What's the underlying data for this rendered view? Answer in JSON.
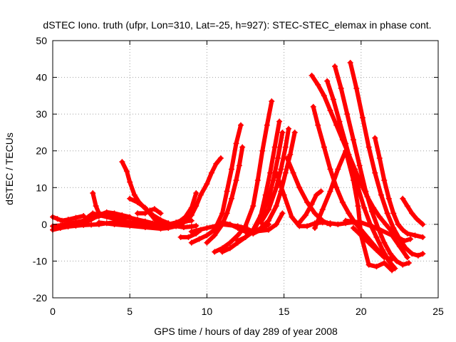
{
  "chart_data": {
    "type": "scatter",
    "title": "dSTEC Iono. truth (ufpr, Lon=310, Lat=-25, h=927): STEC-STEC_elemax in phase cont.",
    "xlabel": "GPS time / hours of day 289 of year 2008",
    "ylabel": "dSTEC  / TECUs",
    "xlim": [
      0,
      25
    ],
    "ylim": [
      -20,
      50
    ],
    "xticks": [
      0,
      5,
      10,
      15,
      20,
      25
    ],
    "yticks": [
      -20,
      -10,
      0,
      10,
      20,
      30,
      40,
      50
    ],
    "grid": true,
    "marker": "plus",
    "color": "#ff0000",
    "series": [
      {
        "x": [
          0.0,
          0.5,
          1.0,
          1.5,
          2.0,
          2.5,
          3.0,
          3.5,
          4.0,
          4.5,
          5.0,
          5.5,
          6.0,
          6.5,
          7.0
        ],
        "y": [
          -1.5,
          -1.0,
          -0.6,
          -0.4,
          -0.2,
          -0.1,
          0.0,
          0.3,
          0.5,
          0.7,
          0.6,
          0.3,
          0.0,
          -0.3,
          -0.6
        ]
      },
      {
        "x": [
          0.0,
          0.3,
          0.6,
          1.0,
          1.5,
          2.0
        ],
        "y": [
          2.0,
          1.5,
          1.0,
          1.3,
          1.8,
          2.3
        ]
      },
      {
        "x": [
          0.0,
          0.5,
          1.0,
          1.5,
          2.0,
          2.5,
          3.0,
          3.5
        ],
        "y": [
          -0.5,
          -0.3,
          0.2,
          0.6,
          1.0,
          1.6,
          2.2,
          2.8
        ]
      },
      {
        "x": [
          1.0,
          1.5,
          2.0,
          2.5,
          3.0,
          3.5,
          4.0,
          4.5,
          5.0
        ],
        "y": [
          -0.5,
          0.0,
          0.5,
          1.3,
          2.5,
          3.3,
          3.0,
          2.5,
          2.0
        ]
      },
      {
        "x": [
          2.0,
          2.3,
          2.6,
          3.0,
          3.5,
          4.0,
          4.5,
          5.0,
          5.5,
          6.0,
          6.5,
          7.0,
          7.5,
          8.0,
          8.5,
          9.0
        ],
        "y": [
          1.0,
          2.0,
          3.0,
          2.5,
          2.0,
          1.5,
          1.0,
          0.5,
          0.0,
          -0.3,
          -0.5,
          -0.7,
          -0.5,
          0.3,
          0.8,
          1.0
        ]
      },
      {
        "x": [
          2.6,
          2.8,
          3.0,
          3.5,
          4.0,
          4.5,
          5.0,
          5.5,
          6.0,
          6.5,
          7.0
        ],
        "y": [
          8.5,
          5.0,
          3.0,
          2.6,
          2.3,
          2.0,
          1.8,
          1.3,
          0.8,
          0.3,
          -0.3
        ]
      },
      {
        "x": [
          4.5,
          4.8,
          5.0,
          5.3,
          5.6,
          6.0,
          6.5,
          7.0,
          7.5,
          8.0,
          8.5,
          9.0,
          9.3
        ],
        "y": [
          17.0,
          14.5,
          11.5,
          8.0,
          6.0,
          4.3,
          2.5,
          1.2,
          0.3,
          -0.5,
          -0.8,
          -0.6,
          -0.4
        ]
      },
      {
        "x": [
          5.0,
          5.5,
          6.0,
          6.3,
          6.6,
          7.0,
          7.5
        ],
        "y": [
          7.0,
          6.0,
          4.5,
          3.0,
          1.5,
          0.5,
          0.0
        ]
      },
      {
        "x": [
          5.5,
          6.0,
          6.3,
          6.6,
          7.0
        ],
        "y": [
          3.0,
          3.0,
          3.8,
          4.2,
          3.0
        ]
      },
      {
        "x": [
          3.0,
          4.0,
          5.0,
          6.0,
          7.0,
          7.5,
          8.0,
          8.3
        ],
        "y": [
          0.5,
          0.0,
          -0.4,
          -0.8,
          -1.2,
          -1.0,
          -0.5,
          0.0
        ]
      },
      {
        "x": [
          8.3,
          8.8,
          9.3,
          9.6
        ],
        "y": [
          -3.5,
          -3.5,
          -2.5,
          -1.5
        ]
      },
      {
        "x": [
          7.5,
          8.0,
          8.3,
          8.6,
          9.0,
          9.3
        ],
        "y": [
          0.0,
          0.5,
          1.0,
          2.0,
          4.5,
          8.5
        ]
      },
      {
        "x": [
          8.3,
          8.7,
          9.0,
          9.3,
          9.6,
          10.0,
          10.3,
          10.6,
          10.9
        ],
        "y": [
          0.0,
          1.0,
          2.5,
          5.0,
          8.0,
          11.0,
          14.0,
          16.5,
          18.0
        ]
      },
      {
        "x": [
          9.0,
          9.5,
          10.0,
          10.5,
          11.0,
          11.3,
          11.6,
          11.9,
          12.2
        ],
        "y": [
          -5.0,
          -4.0,
          -3.0,
          -1.5,
          3.0,
          9.0,
          15.0,
          22.0,
          27.0
        ]
      },
      {
        "x": [
          10.0,
          10.5,
          11.0,
          11.3,
          11.6,
          11.9,
          12.1,
          12.3
        ],
        "y": [
          -5.0,
          -3.0,
          0.0,
          3.0,
          7.0,
          12.0,
          16.0,
          21.0
        ]
      },
      {
        "x": [
          10.5,
          11.0,
          11.5,
          12.0,
          12.5,
          13.0,
          13.3,
          13.6,
          13.9,
          14.2
        ],
        "y": [
          -7.5,
          -6.5,
          -5.0,
          -3.0,
          -0.5,
          5.0,
          12.0,
          20.0,
          27.0,
          33.5
        ]
      },
      {
        "x": [
          11.0,
          11.5,
          12.0,
          12.5,
          13.0,
          13.5,
          13.8,
          14.1,
          14.4,
          14.7
        ],
        "y": [
          -7.5,
          -6.5,
          -5.0,
          -3.5,
          -1.5,
          2.5,
          8.0,
          14.0,
          21.0,
          28.0
        ]
      },
      {
        "x": [
          12.0,
          12.5,
          13.0,
          13.5,
          14.0,
          14.3,
          14.6,
          14.9
        ],
        "y": [
          -4.5,
          -3.5,
          -2.0,
          2.0,
          7.0,
          12.0,
          18.0,
          25.0
        ]
      },
      {
        "x": [
          13.0,
          13.5,
          14.0,
          14.5,
          14.8,
          15.1,
          15.4,
          15.7
        ],
        "y": [
          -2.5,
          -1.0,
          1.0,
          5.0,
          9.0,
          14.0,
          19.0,
          25.0
        ]
      },
      {
        "x": [
          13.5,
          14.0,
          14.5,
          14.8,
          15.1,
          15.3
        ],
        "y": [
          0.5,
          4.0,
          10.0,
          15.0,
          21.0,
          26.0
        ]
      },
      {
        "x": [
          9.0,
          10.0,
          11.0,
          12.0,
          12.5,
          13.0,
          14.0,
          14.5,
          14.9
        ],
        "y": [
          -2.0,
          -1.0,
          0.0,
          -0.5,
          -1.0,
          -2.0,
          -1.5,
          0.0,
          3.0
        ]
      },
      {
        "x": [
          11.0,
          11.5,
          12.0,
          12.5,
          13.0,
          13.5,
          14.0
        ],
        "y": [
          0.5,
          0.0,
          -1.0,
          -2.0,
          -2.5,
          -1.5,
          0.0
        ]
      },
      {
        "x": [
          15.2,
          15.6,
          16.0,
          16.5,
          17.0,
          17.5,
          17.8,
          18.0
        ],
        "y": [
          18.0,
          14.0,
          10.0,
          6.0,
          3.0,
          1.0,
          0.3,
          0.0
        ]
      },
      {
        "x": [
          14.5,
          15.0,
          15.5,
          16.0,
          16.5,
          17.0,
          17.5,
          18.0,
          18.5,
          19.0,
          19.5,
          20.0
        ],
        "y": [
          14.0,
          8.0,
          2.0,
          -0.5,
          -0.5,
          0.3,
          0.5,
          0.3,
          0.0,
          0.3,
          0.6,
          0.5
        ]
      },
      {
        "x": [
          16.0,
          16.4,
          16.8,
          17.1,
          17.4
        ],
        "y": [
          0.5,
          2.5,
          5.5,
          8.0,
          9.0
        ]
      },
      {
        "x": [
          16.8,
          17.2,
          17.6,
          18.0,
          18.4,
          18.8,
          19.2,
          19.6,
          20.0,
          20.4,
          20.8,
          21.2,
          21.6,
          22.0,
          22.4,
          22.8,
          23.2
        ],
        "y": [
          40.5,
          38.0,
          35.0,
          31.0,
          27.0,
          23.0,
          19.0,
          15.0,
          11.0,
          7.5,
          4.5,
          2.0,
          0.0,
          -2.0,
          -3.5,
          -4.5,
          -4.0
        ]
      },
      {
        "x": [
          16.9,
          17.2,
          17.6,
          18.0,
          18.4,
          18.8,
          19.2,
          19.6,
          20.0,
          20.4,
          20.8,
          21.2,
          21.6,
          22.0
        ],
        "y": [
          32.0,
          27.0,
          21.0,
          15.0,
          10.0,
          6.0,
          3.0,
          0.5,
          -1.5,
          -3.5,
          -5.5,
          -7.5,
          -9.0,
          -9.5
        ]
      },
      {
        "x": [
          17.8,
          18.2,
          18.6,
          19.0,
          19.4,
          19.8,
          20.2,
          20.6,
          21.0,
          21.4,
          21.8,
          22.2
        ],
        "y": [
          39.0,
          34.0,
          28.0,
          22.0,
          16.0,
          10.0,
          4.5,
          0.0,
          -3.5,
          -7.0,
          -10.0,
          -12.0
        ]
      },
      {
        "x": [
          18.3,
          18.7,
          19.1,
          19.5,
          19.9,
          20.3,
          20.7,
          21.1,
          21.5,
          21.9,
          22.3,
          22.7,
          23.1
        ],
        "y": [
          43.0,
          37.0,
          30.0,
          23.0,
          16.0,
          9.0,
          3.5,
          -1.0,
          -5.0,
          -8.0,
          -10.0,
          -11.0,
          -10.5
        ]
      },
      {
        "x": [
          19.3,
          19.7,
          20.1,
          20.5,
          20.9,
          21.3,
          21.7,
          22.1,
          22.5,
          22.9,
          23.3,
          23.7,
          24.0
        ],
        "y": [
          44.0,
          37.0,
          29.0,
          21.0,
          14.0,
          8.0,
          3.0,
          -1.0,
          -4.0,
          -6.5,
          -8.0,
          -8.5,
          -8.0
        ]
      },
      {
        "x": [
          17.0,
          17.5,
          18.0,
          18.5,
          19.0,
          19.5,
          19.8,
          20.0,
          20.5,
          21.0,
          21.5,
          22.0
        ],
        "y": [
          -1.0,
          4.0,
          9.0,
          15.0,
          20.0,
          12.0,
          5.0,
          -3.0,
          -11.0,
          -11.5,
          -10.5,
          -12.5
        ]
      },
      {
        "x": [
          20.9,
          21.2,
          21.5,
          21.8,
          22.1,
          22.4,
          22.7,
          23.0,
          23.5,
          24.0
        ],
        "y": [
          23.5,
          18.0,
          12.0,
          7.0,
          3.0,
          0.0,
          -1.5,
          -2.5,
          -3.0,
          -3.5
        ]
      },
      {
        "x": [
          22.7,
          23.0,
          23.3,
          23.6,
          24.0
        ],
        "y": [
          7.0,
          5.0,
          3.0,
          1.5,
          0.0
        ]
      },
      {
        "x": [
          19.0,
          20.0,
          21.0,
          22.0,
          22.5,
          23.0
        ],
        "y": [
          1.0,
          0.5,
          -1.0,
          -3.0,
          -6.0,
          -9.0
        ]
      },
      {
        "x": [
          19.5,
          20.0,
          20.5,
          21.0,
          21.5
        ],
        "y": [
          -1.0,
          -3.0,
          -5.0,
          -7.0,
          -9.0
        ]
      }
    ]
  }
}
